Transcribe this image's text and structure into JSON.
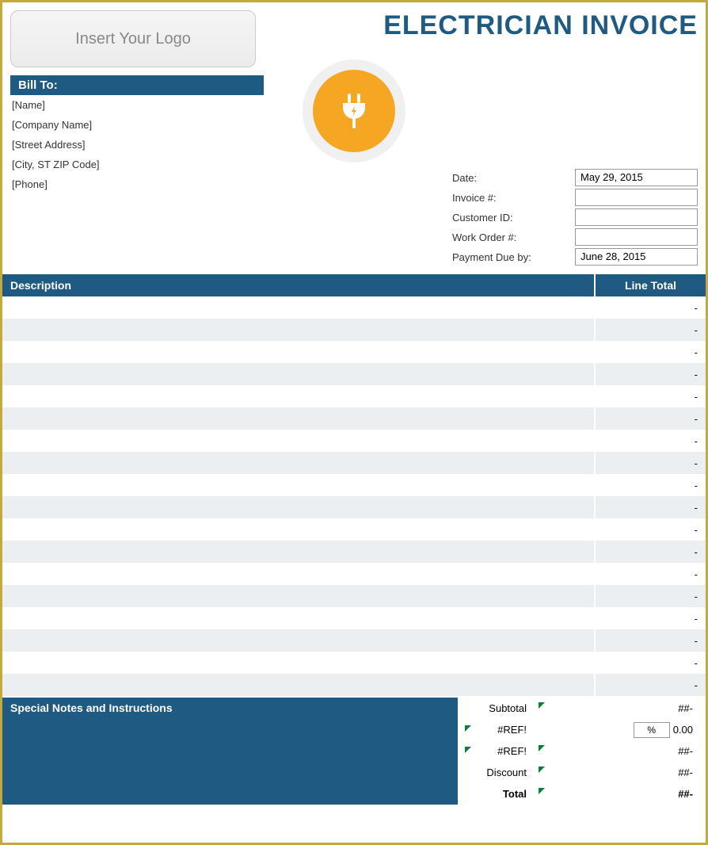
{
  "header": {
    "logo_placeholder": "Insert Your Logo",
    "title": "ELECTRICIAN INVOICE"
  },
  "bill_to": {
    "heading": "Bill To:",
    "fields": [
      "[Name]",
      "[Company Name]",
      "[Street Address]",
      "[City, ST  ZIP Code]",
      "[Phone]"
    ]
  },
  "meta": {
    "rows": [
      {
        "label": "Date:",
        "value": "May 29, 2015"
      },
      {
        "label": "Invoice #:",
        "value": ""
      },
      {
        "label": "Customer ID:",
        "value": ""
      },
      {
        "label": "Work Order #:",
        "value": ""
      },
      {
        "label": "Payment Due by:",
        "value": "June 28, 2015"
      }
    ]
  },
  "table": {
    "col_description": "Description",
    "col_line_total": "Line Total",
    "rows": [
      {
        "desc": "",
        "total": "-"
      },
      {
        "desc": "",
        "total": "-"
      },
      {
        "desc": "",
        "total": "-"
      },
      {
        "desc": "",
        "total": "-"
      },
      {
        "desc": "",
        "total": "-"
      },
      {
        "desc": "",
        "total": "-"
      },
      {
        "desc": "",
        "total": "-"
      },
      {
        "desc": "",
        "total": "-"
      },
      {
        "desc": "",
        "total": "-"
      },
      {
        "desc": "",
        "total": "-"
      },
      {
        "desc": "",
        "total": "-"
      },
      {
        "desc": "",
        "total": "-"
      },
      {
        "desc": "",
        "total": "-"
      },
      {
        "desc": "",
        "total": "-"
      },
      {
        "desc": "",
        "total": "-"
      },
      {
        "desc": "",
        "total": "-"
      },
      {
        "desc": "",
        "total": "-"
      },
      {
        "desc": "",
        "total": "-"
      }
    ]
  },
  "notes_heading": "Special Notes and Instructions",
  "totals": {
    "subtotal_label": "Subtotal",
    "subtotal_marker": "##",
    "subtotal_value": "-",
    "ref1_label": "#REF!",
    "pct_symbol": "%",
    "pct_value": "0.00",
    "ref2_label": "#REF!",
    "ref2_marker": "##",
    "ref2_value": "-",
    "discount_label": "Discount",
    "discount_marker": "##",
    "discount_value": "-",
    "total_label": "Total",
    "total_marker": "##",
    "total_value": "-"
  },
  "colors": {
    "brand_blue": "#1f5a82",
    "accent_yellow": "#f5a623",
    "border_gold": "#c4a93f",
    "row_alt": "#eceff1",
    "error_green": "#0a7d3a"
  }
}
